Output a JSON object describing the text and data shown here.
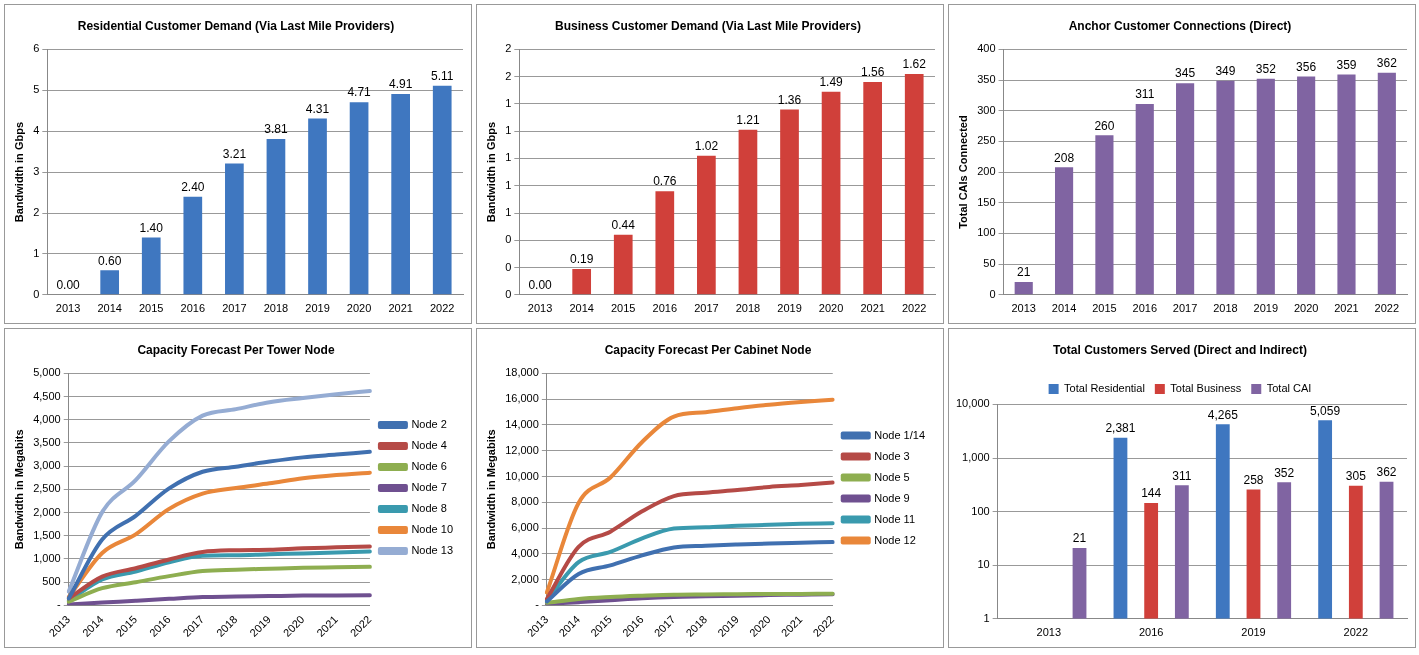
{
  "chart_data": [
    {
      "type": "bar",
      "title": "Residential Customer Demand (Via Last Mile Providers)",
      "ylabel": "Bandwidth in Gbps",
      "categories": [
        "2013",
        "2014",
        "2015",
        "2016",
        "2017",
        "2018",
        "2019",
        "2020",
        "2021",
        "2022"
      ],
      "values": [
        0,
        0.6,
        1.4,
        2.4,
        3.21,
        3.81,
        4.31,
        4.71,
        4.91,
        5.11
      ],
      "value_labels": [
        "0.00",
        "0.60",
        "1.40",
        "2.40",
        "3.21",
        "3.81",
        "4.31",
        "4.71",
        "4.91",
        "5.11"
      ],
      "color": "#3f77c0",
      "ylim": [
        0,
        6
      ],
      "yticks": [
        0,
        1,
        2,
        3,
        4,
        5,
        6
      ],
      "grid": "y",
      "legend": false
    },
    {
      "type": "bar",
      "title": "Business Customer Demand (Via Last Mile Providers)",
      "ylabel": "Bandwidth in Gbps",
      "categories": [
        "2013",
        "2014",
        "2015",
        "2016",
        "2017",
        "2018",
        "2019",
        "2020",
        "2021",
        "2022"
      ],
      "values": [
        0,
        0.19,
        0.44,
        0.76,
        1.02,
        1.21,
        1.36,
        1.49,
        1.56,
        1.62
      ],
      "value_labels": [
        "0.00",
        "0.19",
        "0.44",
        "0.76",
        "1.02",
        "1.21",
        "1.36",
        "1.49",
        "1.56",
        "1.62"
      ],
      "color": "#d0403a",
      "ylim": [
        0,
        1.8
      ],
      "yticks": [
        {
          "value": 0,
          "label": "0"
        },
        {
          "value": 0.2,
          "label": "0"
        },
        {
          "value": 0.4,
          "label": "0"
        },
        {
          "value": 0.6,
          "label": "1"
        },
        {
          "value": 0.8,
          "label": "1"
        },
        {
          "value": 1.0,
          "label": "1"
        },
        {
          "value": 1.2,
          "label": "1"
        },
        {
          "value": 1.4,
          "label": "1"
        },
        {
          "value": 1.6,
          "label": "2"
        },
        {
          "value": 1.8,
          "label": "2"
        }
      ],
      "grid": "y",
      "legend": false
    },
    {
      "type": "bar",
      "title": "Anchor Customer Connections (Direct)",
      "ylabel": "Total CAIs Connected",
      "categories": [
        "2013",
        "2014",
        "2015",
        "2016",
        "2017",
        "2018",
        "2019",
        "2020",
        "2021",
        "2022"
      ],
      "values": [
        21,
        208,
        260,
        311,
        345,
        349,
        352,
        356,
        359,
        362
      ],
      "data_labels": true,
      "color": "#8064a2",
      "ylim": [
        0,
        400
      ],
      "yticks": [
        0,
        50,
        100,
        150,
        200,
        250,
        300,
        350,
        400
      ],
      "grid": "y",
      "legend": false
    },
    {
      "type": "line",
      "title": "Capacity Forecast Per Tower Node",
      "ylabel": "Bandwidth in Megabits",
      "categories": [
        "2013",
        "2014",
        "2015",
        "2016",
        "2017",
        "2018",
        "2019",
        "2020",
        "2021",
        "2022"
      ],
      "series": [
        {
          "name": "Node 2",
          "color": "#4070b0",
          "values": [
            150,
            1420,
            1930,
            2520,
            2880,
            2990,
            3100,
            3190,
            3250,
            3310
          ]
        },
        {
          "name": "Node 4",
          "color": "#b54a46",
          "values": [
            150,
            620,
            800,
            990,
            1150,
            1190,
            1200,
            1230,
            1250,
            1270
          ]
        },
        {
          "name": "Node 6",
          "color": "#8eae50",
          "values": [
            80,
            370,
            500,
            630,
            740,
            770,
            790,
            810,
            820,
            830
          ]
        },
        {
          "name": "Node 7",
          "color": "#6f5090",
          "values": [
            20,
            60,
            100,
            140,
            180,
            190,
            200,
            210,
            215,
            220
          ]
        },
        {
          "name": "Node 8",
          "color": "#3a9aae",
          "values": [
            100,
            560,
            730,
            930,
            1070,
            1080,
            1100,
            1120,
            1140,
            1160
          ]
        },
        {
          "name": "Node 10",
          "color": "#e9873a",
          "values": [
            180,
            1130,
            1530,
            2080,
            2410,
            2530,
            2630,
            2740,
            2810,
            2860
          ]
        },
        {
          "name": "Node 13",
          "color": "#95acd3",
          "values": [
            300,
            2010,
            2700,
            3540,
            4090,
            4230,
            4380,
            4470,
            4550,
            4620
          ]
        }
      ],
      "ylim": [
        0,
        5000
      ],
      "yticks": [
        {
          "value": 0,
          "label": "-"
        },
        500,
        {
          "value": 1000,
          "label": "1,000"
        },
        {
          "value": 1500,
          "label": "1,500"
        },
        {
          "value": 2000,
          "label": "2,000"
        },
        {
          "value": 2500,
          "label": "2,500"
        },
        {
          "value": 3000,
          "label": "3,000"
        },
        {
          "value": 3500,
          "label": "3,500"
        },
        {
          "value": 4000,
          "label": "4,000"
        },
        {
          "value": 4500,
          "label": "4,500"
        },
        {
          "value": 5000,
          "label": "5,000"
        }
      ],
      "grid": "y",
      "legend": "right",
      "marker": "none"
    },
    {
      "type": "line",
      "title": "Capacity Forecast Per Cabinet Node",
      "ylabel": "Bandwidth in Megabits",
      "categories": [
        "2013",
        "2014",
        "2015",
        "2016",
        "2017",
        "2018",
        "2019",
        "2020",
        "2021",
        "2022"
      ],
      "series": [
        {
          "name": "Node 1/14",
          "color": "#4070b0",
          "values": [
            300,
            2440,
            3100,
            3880,
            4490,
            4620,
            4720,
            4800,
            4860,
            4910
          ]
        },
        {
          "name": "Node 3",
          "color": "#b54a46",
          "values": [
            500,
            4540,
            5720,
            7300,
            8480,
            8740,
            8950,
            9190,
            9340,
            9530
          ]
        },
        {
          "name": "Node 5",
          "color": "#8eae50",
          "values": [
            200,
            500,
            650,
            750,
            830,
            850,
            870,
            880,
            890,
            900
          ]
        },
        {
          "name": "Node 9",
          "color": "#6f5090",
          "values": [
            100,
            250,
            400,
            550,
            650,
            700,
            750,
            800,
            830,
            870
          ]
        },
        {
          "name": "Node 11",
          "color": "#3a9aae",
          "values": [
            400,
            3360,
            4150,
            5200,
            5960,
            6060,
            6170,
            6250,
            6330,
            6380
          ]
        },
        {
          "name": "Node 12",
          "color": "#e9873a",
          "values": [
            1000,
            7950,
            9920,
            12680,
            14650,
            14990,
            15300,
            15570,
            15780,
            15960
          ]
        }
      ],
      "ylim": [
        0,
        18000
      ],
      "yticks": [
        {
          "value": 0,
          "label": "-"
        },
        {
          "value": 2000,
          "label": "2,000"
        },
        {
          "value": 4000,
          "label": "4,000"
        },
        {
          "value": 6000,
          "label": "6,000"
        },
        {
          "value": 8000,
          "label": "8,000"
        },
        {
          "value": 10000,
          "label": "10,000"
        },
        {
          "value": 12000,
          "label": "12,000"
        },
        {
          "value": 14000,
          "label": "14,000"
        },
        {
          "value": 16000,
          "label": "16,000"
        },
        {
          "value": 18000,
          "label": "18,000"
        }
      ],
      "grid": "y",
      "legend": "right",
      "marker": "none"
    },
    {
      "type": "bar",
      "title": "Total Customers Served (Direct and Indirect)",
      "categories": [
        "2013",
        "2016",
        "2019",
        "2022"
      ],
      "series": [
        {
          "name": "Total Residential",
          "color": "#3f77c0",
          "values": [
            null,
            2381,
            4265,
            5059
          ],
          "value_labels": [
            null,
            "2,381",
            "4,265",
            "5,059"
          ]
        },
        {
          "name": "Total Business",
          "color": "#d0403a",
          "values": [
            null,
            144,
            258,
            305
          ],
          "value_labels": [
            null,
            "144",
            "258",
            "305"
          ]
        },
        {
          "name": "Total CAI",
          "color": "#8064a2",
          "values": [
            21,
            311,
            352,
            362
          ],
          "value_labels": [
            "21",
            "311",
            "352",
            "362"
          ]
        }
      ],
      "log": "y",
      "ylim": [
        1,
        10000
      ],
      "yticks": [
        1,
        10,
        100,
        {
          "value": 1000,
          "label": "1,000"
        },
        {
          "value": 10000,
          "label": "10,000"
        }
      ],
      "grid": "y",
      "legend": "top"
    }
  ]
}
